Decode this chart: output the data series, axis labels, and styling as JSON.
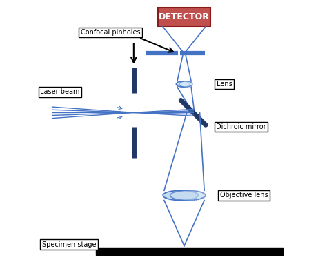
{
  "fig_width": 4.74,
  "fig_height": 3.83,
  "dpi": 100,
  "bg_color": "#ffffff",
  "blue": "#2255AA",
  "light_blue": "#4472C4",
  "dark_blue": "#1F3864",
  "detector_bg": "#C0504D",
  "detector_edge": "#8B1A1A",
  "detector_text": "DETECTOR",
  "label_confocal": "Confocal pinholes",
  "label_laser": "Laser beam",
  "label_lens": "Lens",
  "label_dichroic": "Dichroic mirror",
  "label_objective": "Objective lens",
  "label_specimen": "Specimen stage",
  "xlim": [
    0,
    10
  ],
  "ylim": [
    0,
    10
  ]
}
